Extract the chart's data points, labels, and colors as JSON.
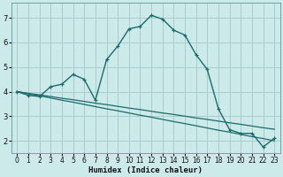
{
  "xlabel": "Humidex (Indice chaleur)",
  "bg_color": "#cceaea",
  "grid_color": "#aacccc",
  "line_color": "#1a6b6b",
  "xlim": [
    -0.5,
    23.5
  ],
  "ylim": [
    1.5,
    7.6
  ],
  "xticks": [
    0,
    1,
    2,
    3,
    4,
    5,
    6,
    7,
    8,
    9,
    10,
    11,
    12,
    13,
    14,
    15,
    16,
    17,
    18,
    19,
    20,
    21,
    22,
    23
  ],
  "yticks": [
    2,
    3,
    4,
    5,
    6,
    7
  ],
  "line1_x": [
    0,
    1,
    2,
    3,
    4,
    5,
    6,
    7,
    8,
    9,
    10,
    11,
    12,
    13,
    14,
    15,
    16,
    17,
    18,
    19,
    20,
    21,
    22,
    23
  ],
  "line1_y": [
    4.0,
    3.85,
    3.8,
    4.2,
    4.3,
    4.7,
    4.5,
    3.65,
    5.3,
    5.85,
    6.55,
    6.65,
    7.1,
    6.95,
    6.5,
    6.3,
    5.5,
    4.9,
    3.3,
    2.45,
    2.3,
    2.3,
    1.75,
    2.1
  ],
  "line2_x": [
    0,
    1,
    2,
    3,
    4,
    5,
    6,
    7,
    8,
    9,
    10,
    11,
    12,
    13,
    14,
    15,
    16,
    17,
    18,
    19,
    20,
    21,
    22,
    23
  ],
  "line2_y": [
    4.0,
    3.93,
    3.87,
    3.8,
    3.73,
    3.67,
    3.6,
    3.53,
    3.47,
    3.4,
    3.33,
    3.27,
    3.2,
    3.13,
    3.07,
    3.0,
    2.93,
    2.87,
    2.8,
    2.73,
    2.67,
    2.6,
    2.53,
    2.47
  ],
  "line3_x": [
    0,
    1,
    2,
    3,
    4,
    5,
    6,
    7,
    8,
    9,
    10,
    11,
    12,
    13,
    14,
    15,
    16,
    17,
    18,
    19,
    20,
    21,
    22,
    23
  ],
  "line3_y": [
    4.0,
    3.91,
    3.83,
    3.74,
    3.65,
    3.57,
    3.48,
    3.39,
    3.3,
    3.22,
    3.13,
    3.04,
    2.96,
    2.87,
    2.78,
    2.7,
    2.61,
    2.52,
    2.43,
    2.35,
    2.26,
    2.17,
    2.09,
    2.0
  ]
}
